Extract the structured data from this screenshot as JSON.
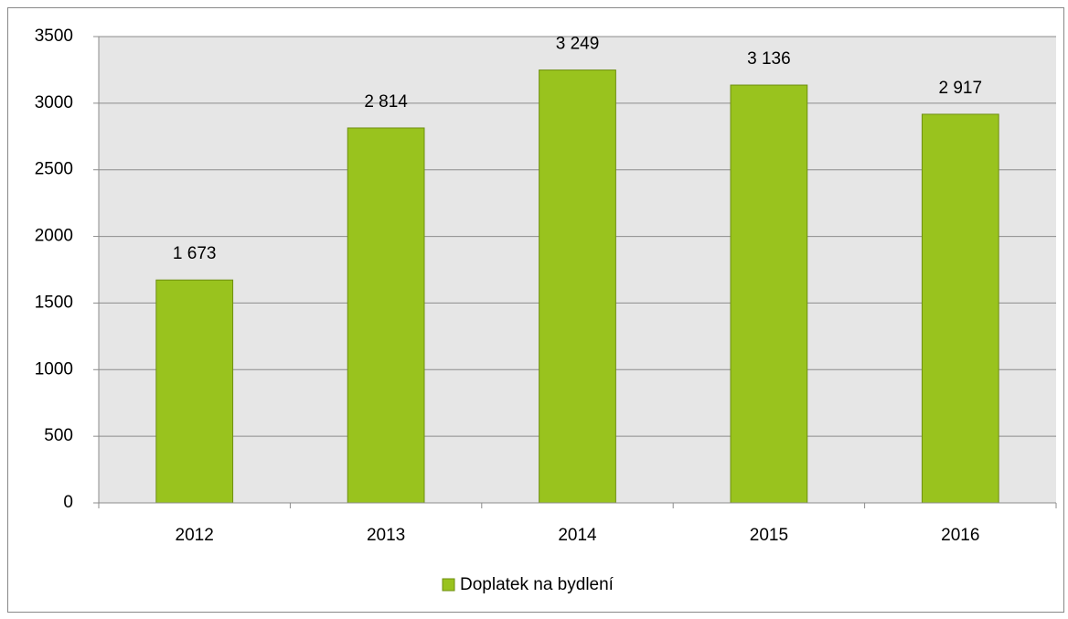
{
  "chart_data": {
    "type": "bar",
    "categories": [
      "2012",
      "2013",
      "2014",
      "2015",
      "2016"
    ],
    "series": [
      {
        "name": "Doplatek na bydlení",
        "color": "#99c31e",
        "values": [
          1673,
          2814,
          3249,
          3136,
          2917
        ],
        "value_labels": [
          "1 673",
          "2 814",
          "3 249",
          "3 136",
          "2 917"
        ]
      }
    ],
    "ylim": [
      0,
      3500
    ],
    "yticks": [
      0,
      500,
      1000,
      1500,
      2000,
      2500,
      3000,
      3500
    ],
    "grid": true,
    "legend": "bottom"
  }
}
